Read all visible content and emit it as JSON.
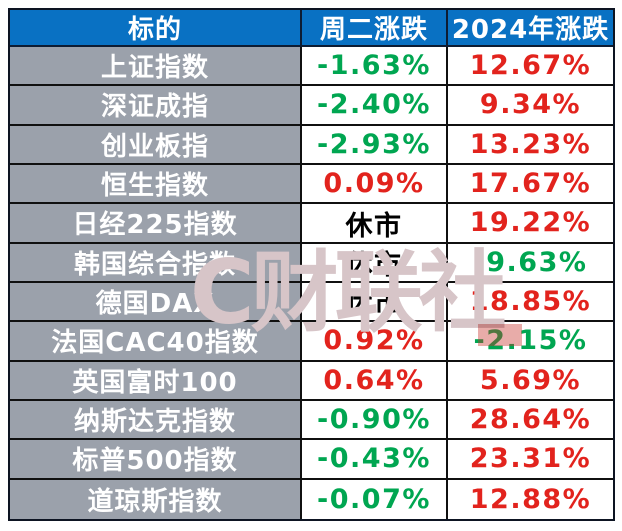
{
  "chart_data": {
    "type": "table",
    "columns": [
      "标的",
      "周二涨跌",
      "2024年涨跌"
    ],
    "rows": [
      {
        "label": "上证指数",
        "tuesday": "-1.63%",
        "tuesday_color": "green",
        "ytd": "12.67%",
        "ytd_color": "red"
      },
      {
        "label": "深证成指",
        "tuesday": "-2.40%",
        "tuesday_color": "green",
        "ytd": "9.34%",
        "ytd_color": "red"
      },
      {
        "label": "创业板指",
        "tuesday": "-2.93%",
        "tuesday_color": "green",
        "ytd": "13.23%",
        "ytd_color": "red"
      },
      {
        "label": "恒生指数",
        "tuesday": "0.09%",
        "tuesday_color": "red",
        "ytd": "17.67%",
        "ytd_color": "red"
      },
      {
        "label": "日经225指数",
        "tuesday": "休市",
        "tuesday_color": "neutral",
        "ytd": "19.22%",
        "ytd_color": "red"
      },
      {
        "label": "韩国综合指数",
        "tuesday": "休市",
        "tuesday_color": "neutral",
        "ytd": "-9.63%",
        "ytd_color": "green"
      },
      {
        "label": "德国DAX",
        "tuesday": "休市",
        "tuesday_color": "neutral",
        "ytd": "18.85%",
        "ytd_color": "red"
      },
      {
        "label": "法国CAC40指数",
        "tuesday": "0.92%",
        "tuesday_color": "red",
        "ytd": "-2.15%",
        "ytd_color": "green"
      },
      {
        "label": "英国富时100",
        "tuesday": "0.64%",
        "tuesday_color": "red",
        "ytd": "5.69%",
        "ytd_color": "red"
      },
      {
        "label": "纳斯达克指数",
        "tuesday": "-0.90%",
        "tuesday_color": "green",
        "ytd": "28.64%",
        "ytd_color": "red"
      },
      {
        "label": "标普500指数",
        "tuesday": "-0.43%",
        "tuesday_color": "green",
        "ytd": "23.31%",
        "ytd_color": "red"
      },
      {
        "label": "道琼斯指数",
        "tuesday": "-0.07%",
        "tuesday_color": "green",
        "ytd": "12.88%",
        "ytd_color": "red"
      }
    ]
  },
  "watermark": {
    "text": "C财联社"
  },
  "colors": {
    "green": "#00a651",
    "red": "#e2231d",
    "neutral": "#000000",
    "header_bg": "#0971c3",
    "header_text": "#ffffff",
    "label_bg": "#9ba1ab",
    "label_text": "#ffffff",
    "border": "#101010"
  }
}
